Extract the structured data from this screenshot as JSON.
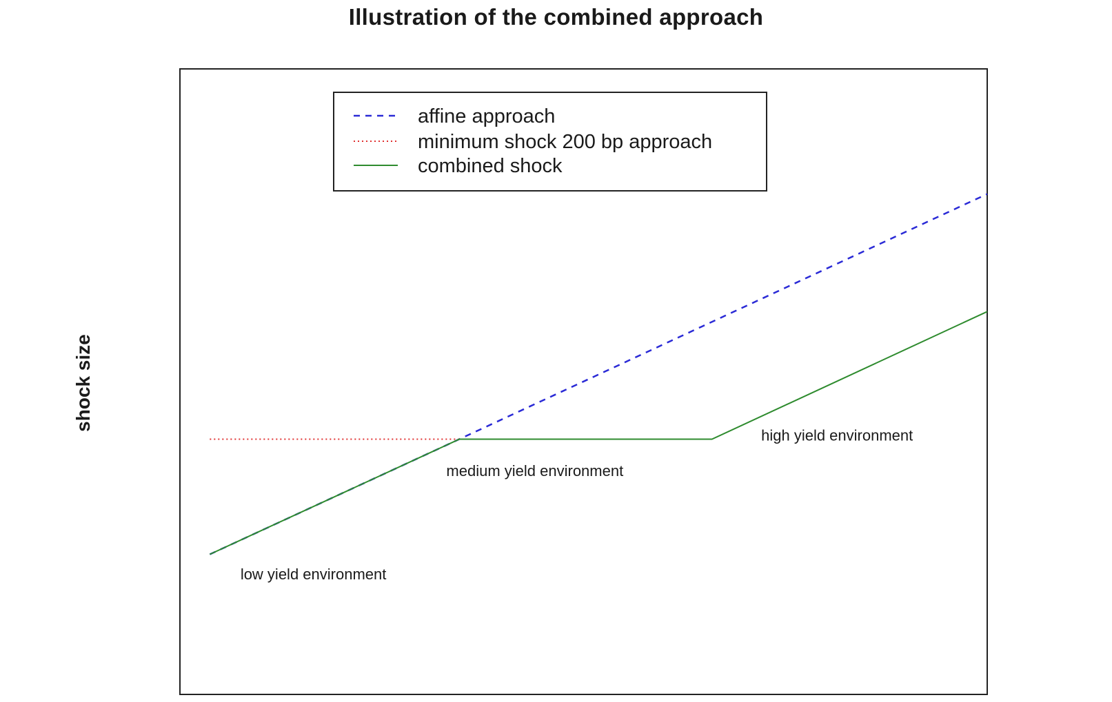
{
  "chart_data": {
    "type": "line",
    "title": "Illustration of the combined approach",
    "xlabel": "",
    "ylabel": "shock size",
    "xlim": [
      0,
      1
    ],
    "ylim": [
      0,
      1
    ],
    "grid": false,
    "legend_position": "top-center",
    "series": [
      {
        "name": "affine approach",
        "color": "#2a2ad6",
        "style": "dashed",
        "x": [
          0.037,
          0.346,
          1.0
        ],
        "y": [
          0.224,
          0.408,
          0.8
        ]
      },
      {
        "name": "minimum shock 200 bp approach",
        "color": "#e03030",
        "style": "dotted",
        "x": [
          0.037,
          0.346
        ],
        "y": [
          0.408,
          0.408
        ]
      },
      {
        "name": "combined shock",
        "color": "#2e8b2e",
        "style": "solid",
        "x": [
          0.037,
          0.346,
          0.659,
          1.0
        ],
        "y": [
          0.224,
          0.408,
          0.408,
          0.612
        ]
      }
    ],
    "annotations": [
      {
        "text": "low yield environment",
        "x": 0.075,
        "y": 0.184
      },
      {
        "text": "medium yield environment",
        "x": 0.33,
        "y": 0.349
      },
      {
        "text": "high yield environment",
        "x": 0.72,
        "y": 0.406
      }
    ]
  }
}
